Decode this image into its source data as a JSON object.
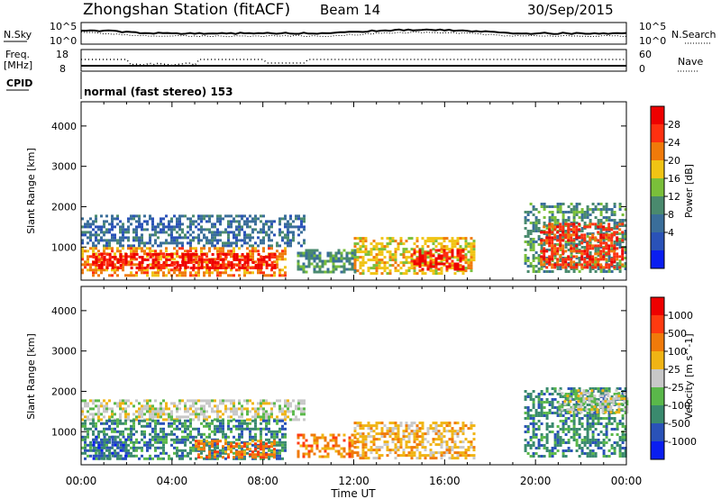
{
  "header": {
    "title": "Zhongshan Station (fitACF)",
    "beam": "Beam 14",
    "date": "30/Sep/2015"
  },
  "top_panels": {
    "nsky_label": "N.Sky",
    "nsky_ticks": [
      "10^5",
      "10^0"
    ],
    "nsearch_label": "N.Search",
    "nsearch_ticks": [
      "10^5",
      "10^0"
    ],
    "freq_label_1": "Freq.",
    "freq_label_2": "[MHz]",
    "freq_ticks": [
      "18",
      "8"
    ],
    "nave_label": "Nave",
    "nave_ticks": [
      "60",
      "0"
    ],
    "cpid_label": "CPID",
    "cpid_text": "normal (fast stereo) 153"
  },
  "chart_data": [
    {
      "type": "heatmap",
      "name": "power",
      "ylabel": "Slant Range [km]",
      "xlabel": "",
      "xlim": [
        0,
        24
      ],
      "ylim": [
        180,
        4600
      ],
      "yticks": [
        1000,
        2000,
        3000,
        4000
      ],
      "colorbar": {
        "label": "Power [dB]",
        "ticks": [
          "28",
          "24",
          "20",
          "16",
          "12",
          "8",
          "4"
        ],
        "colors": [
          "#0a1ef0",
          "#2a52b8",
          "#3a6e9a",
          "#4a8a6e",
          "#7abf3a",
          "#f0c414",
          "#f07a0a",
          "#ff3010",
          "#ee0000"
        ]
      },
      "regions": [
        {
          "x": [
            0.0,
            9.8
          ],
          "y": [
            1000,
            1800
          ],
          "level": 2
        },
        {
          "x": [
            0.0,
            9.0
          ],
          "y": [
            300,
            1000
          ],
          "level": 6
        },
        {
          "x": [
            0.5,
            8.5
          ],
          "y": [
            450,
            850
          ],
          "level": 8
        },
        {
          "x": [
            9.5,
            12.0
          ],
          "y": [
            400,
            950
          ],
          "level": 3
        },
        {
          "x": [
            12.0,
            17.3
          ],
          "y": [
            350,
            1250
          ],
          "level": 5
        },
        {
          "x": [
            14.5,
            16.8
          ],
          "y": [
            450,
            950
          ],
          "level": 8
        },
        {
          "x": [
            19.5,
            24.0
          ],
          "y": [
            400,
            2100
          ],
          "level": 3
        },
        {
          "x": [
            20.2,
            23.8
          ],
          "y": [
            500,
            1600
          ],
          "level": 7
        }
      ]
    },
    {
      "type": "heatmap",
      "name": "velocity",
      "ylabel": "Slant Range [km]",
      "xlabel": "Time UT",
      "xlim": [
        0,
        24
      ],
      "ylim": [
        180,
        4600
      ],
      "yticks": [
        1000,
        2000,
        3000,
        4000
      ],
      "xticks": [
        "00:00",
        "04:00",
        "08:00",
        "12:00",
        "16:00",
        "20:00",
        "00:00"
      ],
      "colorbar": {
        "label": "Velocity [m s^-1]",
        "ticks": [
          "1000",
          "500",
          "100",
          "25",
          "-25",
          "-100",
          "-500",
          "-1000"
        ],
        "colors": [
          "#0a1ef0",
          "#2a52b8",
          "#3a8a6e",
          "#5ab84a",
          "#c8c8c8",
          "#f0b414",
          "#f07a0a",
          "#ff3a10",
          "#ee0000"
        ]
      },
      "regions": [
        {
          "x": [
            0.0,
            9.8
          ],
          "y": [
            1300,
            1800
          ],
          "level": 4
        },
        {
          "x": [
            0.0,
            9.0
          ],
          "y": [
            300,
            1300
          ],
          "level": 2
        },
        {
          "x": [
            0.5,
            2.0
          ],
          "y": [
            300,
            900
          ],
          "level": 1
        },
        {
          "x": [
            5.0,
            8.5
          ],
          "y": [
            350,
            800
          ],
          "level": 6
        },
        {
          "x": [
            9.5,
            12.0
          ],
          "y": [
            400,
            950
          ],
          "level": 6
        },
        {
          "x": [
            12.0,
            17.3
          ],
          "y": [
            350,
            1250
          ],
          "level": 5
        },
        {
          "x": [
            19.5,
            24.0
          ],
          "y": [
            400,
            2100
          ],
          "level": 2
        },
        {
          "x": [
            21.0,
            24.0
          ],
          "y": [
            1500,
            2050
          ],
          "level": 4
        }
      ]
    }
  ]
}
